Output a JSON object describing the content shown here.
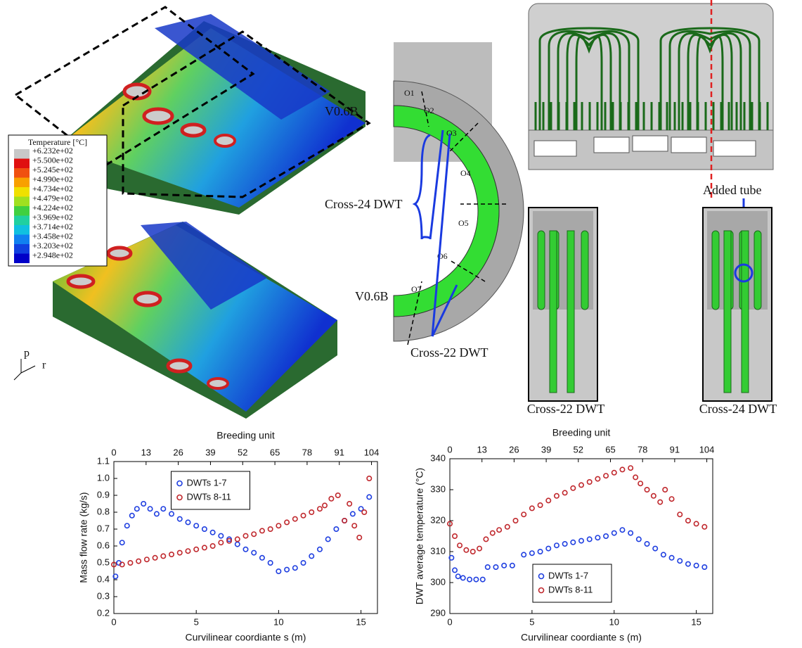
{
  "figure": {
    "temperature_legend": {
      "title": "Temperature [°C]",
      "labels": [
        "+6.232e+02",
        "+5.500e+02",
        "+5.245e+02",
        "+4.990e+02",
        "+4.734e+02",
        "+4.479e+02",
        "+4.224e+02",
        "+3.969e+02",
        "+3.714e+02",
        "+3.458e+02",
        "+3.203e+02",
        "+2.948e+02"
      ]
    },
    "axes_labels": [
      "p",
      "r"
    ],
    "v_label_top": "V0.6B",
    "v_label_bottom": "V0.6B",
    "o_labels": [
      "O1",
      "O2",
      "O3",
      "O4",
      "O5",
      "O6",
      "O7"
    ],
    "cross24_label": "Cross-24 DWT",
    "cross22_label": "Cross-22 DWT",
    "added_tube": "Added tube",
    "panel_left_caption": "Cross-22 DWT",
    "panel_right_caption": "Cross-24 DWT"
  },
  "chart_data": [
    {
      "type": "scatter",
      "x2_label": "Breeding unit",
      "x_label": "Curvilinear coordiante s (m)",
      "y_label": "Mass flow rate (kg/s)",
      "xlim": [
        0,
        16
      ],
      "xticks": [
        0,
        5,
        10,
        15
      ],
      "x2lim": [
        0,
        106.4
      ],
      "x2ticks": [
        0,
        13,
        26,
        39,
        52,
        65,
        78,
        91,
        104
      ],
      "ylim": [
        0.2,
        1.1
      ],
      "yticks": [
        0.2,
        0.3,
        0.4,
        0.5,
        0.6,
        0.7,
        0.8,
        0.9,
        {
          "value": 1,
          "label": "1.0"
        },
        1.1
      ],
      "legend": "upper center",
      "series": [
        {
          "name": "DWTs 1-7",
          "color": "#1f3fe0",
          "x": [
            0.1,
            0.3,
            0.5,
            0.8,
            1.1,
            1.4,
            1.8,
            2.2,
            2.6,
            3,
            3.5,
            4,
            4.5,
            5,
            5.5,
            6,
            6.5,
            7,
            7.5,
            8,
            8.5,
            9,
            9.5,
            10,
            10.5,
            11,
            11.5,
            12,
            12.5,
            13,
            13.5,
            14,
            14.5,
            15,
            15.5
          ],
          "values": [
            0.42,
            0.5,
            0.62,
            0.72,
            0.78,
            0.82,
            0.85,
            0.82,
            0.79,
            0.82,
            0.79,
            0.76,
            0.74,
            0.72,
            0.7,
            0.68,
            0.66,
            0.64,
            0.61,
            0.58,
            0.56,
            0.53,
            0.5,
            0.45,
            0.46,
            0.47,
            0.5,
            0.54,
            0.58,
            0.64,
            0.7,
            0.75,
            0.79,
            0.82,
            0.89
          ]
        },
        {
          "name": "DWTs 8-11",
          "color": "#c0282d",
          "x": [
            0,
            0.5,
            1,
            1.5,
            2,
            2.5,
            3,
            3.5,
            4,
            4.5,
            5,
            5.5,
            6,
            6.5,
            7,
            7.5,
            8,
            8.5,
            9,
            9.5,
            10,
            10.5,
            11,
            11.5,
            12,
            12.5,
            12.8,
            13.2,
            13.6,
            14,
            14.3,
            14.6,
            14.9,
            15.2,
            15.5
          ],
          "values": [
            0.49,
            0.49,
            0.5,
            0.51,
            0.52,
            0.53,
            0.54,
            0.55,
            0.56,
            0.57,
            0.58,
            0.59,
            0.6,
            0.62,
            0.63,
            0.64,
            0.66,
            0.67,
            0.69,
            0.7,
            0.72,
            0.74,
            0.76,
            0.78,
            0.8,
            0.82,
            0.84,
            0.88,
            0.9,
            0.75,
            0.85,
            0.72,
            0.65,
            0.8,
            1
          ]
        }
      ]
    },
    {
      "type": "scatter",
      "x2_label": "Breeding unit",
      "x_label": "Curvilinear coordiante s (m)",
      "y_label": "DWT average temperature (°C)",
      "xlim": [
        0,
        16
      ],
      "xticks": [
        0,
        5,
        10,
        15
      ],
      "x2lim": [
        0,
        106.4
      ],
      "x2ticks": [
        0,
        13,
        26,
        39,
        52,
        65,
        78,
        91,
        104
      ],
      "ylim": [
        290,
        340
      ],
      "yticks": [
        290,
        300,
        310,
        320,
        330,
        340
      ],
      "legend": "lower left",
      "series": [
        {
          "name": "DWTs 1-7",
          "color": "#1f3fe0",
          "x": [
            0.1,
            0.3,
            0.5,
            0.8,
            1.2,
            1.6,
            2,
            2.3,
            2.8,
            3.3,
            3.8,
            4.5,
            5,
            5.5,
            6,
            6.5,
            7,
            7.5,
            8,
            8.5,
            9,
            9.5,
            10,
            10.5,
            11,
            11.5,
            12,
            12.5,
            13,
            13.5,
            14,
            14.5,
            15,
            15.5
          ],
          "values": [
            308,
            304,
            302,
            301.5,
            301,
            301,
            301,
            305,
            305,
            305.5,
            305.5,
            309,
            309.5,
            310,
            311,
            312,
            312.5,
            313,
            313.5,
            314,
            314.5,
            315,
            316,
            317,
            316,
            314,
            312.5,
            311,
            309,
            308,
            307,
            306,
            305.5,
            305
          ]
        },
        {
          "name": "DWTs 8-11",
          "color": "#c0282d",
          "x": [
            0,
            0.3,
            0.6,
            1,
            1.4,
            1.8,
            2.2,
            2.6,
            3,
            3.5,
            4,
            4.5,
            5,
            5.5,
            6,
            6.5,
            7,
            7.5,
            8,
            8.5,
            9,
            9.5,
            10,
            10.5,
            11,
            11.3,
            11.6,
            12,
            12.4,
            12.8,
            13.1,
            13.5,
            14,
            14.5,
            15,
            15.5
          ],
          "values": [
            319,
            315,
            312,
            310.5,
            310,
            311,
            314,
            316,
            317,
            318,
            320,
            322,
            324,
            325,
            326.5,
            328,
            329,
            330.5,
            331.5,
            332.5,
            333.5,
            334.5,
            335.5,
            336.5,
            337,
            334,
            332,
            330,
            328,
            326,
            330,
            327,
            322,
            320,
            319,
            318
          ]
        }
      ]
    }
  ]
}
